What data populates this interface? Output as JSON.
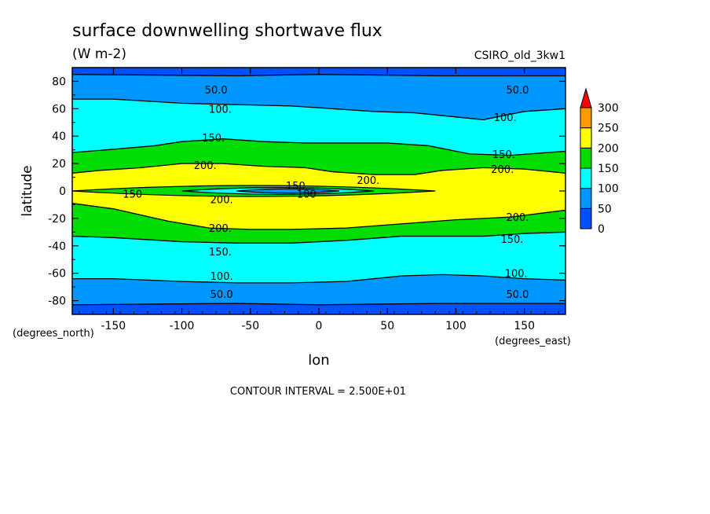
{
  "chart_data": {
    "type": "contour",
    "title": "surface downwelling shortwave flux",
    "subtitle": "(W m-2)",
    "dataset": "CSIRO_old_3kw1",
    "xlabel": "lon",
    "ylabel": "latitude",
    "x_units": "(degrees_east)",
    "y_units": "(degrees_north)",
    "xlim": [
      -180,
      180
    ],
    "ylim": [
      -90,
      90
    ],
    "x_ticks": [
      -150,
      -100,
      -50,
      0,
      50,
      100,
      150
    ],
    "y_ticks": [
      -80,
      -60,
      -40,
      -20,
      0,
      20,
      40,
      60,
      80
    ],
    "footnote": "CONTOUR INTERVAL = 2.500E+01",
    "colorbar": {
      "levels": [
        0,
        50,
        100,
        150,
        200,
        250,
        300
      ],
      "colors": [
        "#0050ff",
        "#0096ff",
        "#00ffff",
        "#00dd00",
        "#ffff00",
        "#ff9900"
      ],
      "extend_color": "#ff0000"
    },
    "contour_labels": [
      {
        "text": "50.0",
        "lon": -75,
        "lat": 74
      },
      {
        "text": "50.0",
        "lon": 145,
        "lat": 74
      },
      {
        "text": "100.",
        "lon": -72,
        "lat": 60
      },
      {
        "text": "100.",
        "lon": 136,
        "lat": 54
      },
      {
        "text": "150.",
        "lon": -77,
        "lat": 39
      },
      {
        "text": "150.",
        "lon": 135,
        "lat": 27
      },
      {
        "text": "200.",
        "lon": -83,
        "lat": 19
      },
      {
        "text": "200.",
        "lon": 134,
        "lat": 16
      },
      {
        "text": "200.",
        "lon": 36,
        "lat": 8
      },
      {
        "text": "150",
        "lon": -136,
        "lat": -2
      },
      {
        "text": "150",
        "lon": -17,
        "lat": 4
      },
      {
        "text": "100",
        "lon": -9,
        "lat": -2
      },
      {
        "text": "200.",
        "lon": -71,
        "lat": -6
      },
      {
        "text": "200.",
        "lon": 145,
        "lat": -19
      },
      {
        "text": "200.",
        "lon": -72,
        "lat": -27
      },
      {
        "text": "150.",
        "lon": 141,
        "lat": -35
      },
      {
        "text": "150.",
        "lon": -72,
        "lat": -44
      },
      {
        "text": "100.",
        "lon": -71,
        "lat": -62
      },
      {
        "text": "100.",
        "lon": 144,
        "lat": -60
      },
      {
        "text": "50.0",
        "lon": -71,
        "lat": -75
      },
      {
        "text": "50.0",
        "lon": 145,
        "lat": -75
      }
    ],
    "bands": [
      {
        "level": 50,
        "north": [
          [
            -180,
            85
          ],
          [
            -60,
            84
          ],
          [
            0,
            85
          ],
          [
            90,
            84
          ],
          [
            180,
            84
          ]
        ],
        "south": [
          [
            -180,
            -83
          ],
          [
            -60,
            -82
          ],
          [
            0,
            -83
          ],
          [
            90,
            -82
          ],
          [
            180,
            -82
          ]
        ]
      },
      {
        "level": 100,
        "north": [
          [
            -180,
            67
          ],
          [
            -150,
            67
          ],
          [
            -100,
            64
          ],
          [
            -60,
            63
          ],
          [
            -20,
            62
          ],
          [
            10,
            60
          ],
          [
            40,
            58
          ],
          [
            70,
            57
          ],
          [
            100,
            54
          ],
          [
            120,
            52
          ],
          [
            150,
            58
          ],
          [
            180,
            60
          ]
        ],
        "south": [
          [
            -180,
            -64
          ],
          [
            -150,
            -64
          ],
          [
            -100,
            -66
          ],
          [
            -60,
            -67
          ],
          [
            -20,
            -67
          ],
          [
            20,
            -66
          ],
          [
            60,
            -62
          ],
          [
            90,
            -61
          ],
          [
            120,
            -62
          ],
          [
            150,
            -64
          ],
          [
            180,
            -65
          ]
        ]
      },
      {
        "level": 150,
        "north": [
          [
            -180,
            28
          ],
          [
            -155,
            30
          ],
          [
            -120,
            33
          ],
          [
            -100,
            36
          ],
          [
            -70,
            38
          ],
          [
            -40,
            36
          ],
          [
            -10,
            35
          ],
          [
            20,
            35
          ],
          [
            50,
            35
          ],
          [
            80,
            33
          ],
          [
            110,
            27
          ],
          [
            140,
            26
          ],
          [
            180,
            29
          ]
        ],
        "south": [
          [
            -180,
            -33
          ],
          [
            -150,
            -34
          ],
          [
            -100,
            -37
          ],
          [
            -60,
            -38
          ],
          [
            -20,
            -38
          ],
          [
            20,
            -36
          ],
          [
            60,
            -33
          ],
          [
            90,
            -33
          ],
          [
            120,
            -33
          ],
          [
            150,
            -31
          ],
          [
            180,
            -30
          ]
        ]
      },
      {
        "level": 200,
        "north": [
          [
            -180,
            13
          ],
          [
            -160,
            15
          ],
          [
            -130,
            17
          ],
          [
            -100,
            20
          ],
          [
            -70,
            20
          ],
          [
            -40,
            18
          ],
          [
            -10,
            17
          ],
          [
            10,
            14
          ],
          [
            40,
            12
          ],
          [
            70,
            12
          ],
          [
            90,
            15
          ],
          [
            120,
            17
          ],
          [
            150,
            16
          ],
          [
            180,
            13
          ]
        ],
        "south": [
          [
            -180,
            -9
          ],
          [
            -150,
            -13
          ],
          [
            -110,
            -22
          ],
          [
            -80,
            -27
          ],
          [
            -50,
            -28
          ],
          [
            -20,
            -28
          ],
          [
            20,
            -27
          ],
          [
            60,
            -24
          ],
          [
            100,
            -21
          ],
          [
            140,
            -19
          ],
          [
            180,
            -14
          ]
        ]
      }
    ],
    "equatorial_minimum": {
      "outer_poly_level": 150,
      "inner_poly_level": 100
    }
  }
}
